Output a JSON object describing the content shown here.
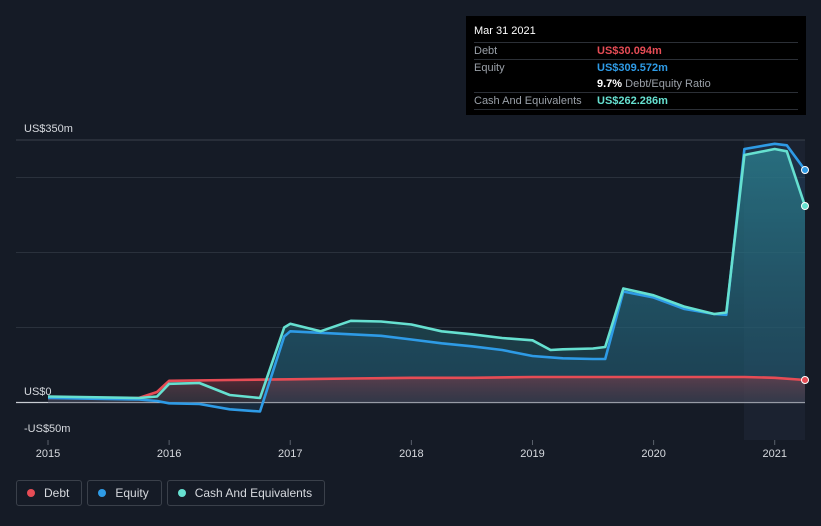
{
  "tooltip": {
    "date": "Mar 31 2021",
    "rows": [
      {
        "label": "Debt",
        "value": "US$30.094m",
        "color": "#e64c55"
      },
      {
        "label": "Equity",
        "value": "US$309.572m",
        "color": "#2e9be6"
      },
      {
        "label": "Cash And Equivalents",
        "value": "US$262.286m",
        "color": "#66e0d0"
      }
    ],
    "ratio_value": "9.7%",
    "ratio_label": "Debt/Equity Ratio"
  },
  "legend": [
    {
      "label": "Debt",
      "color": "#e64c55"
    },
    {
      "label": "Equity",
      "color": "#2e9be6"
    },
    {
      "label": "Cash And Equivalents",
      "color": "#66e0d0"
    }
  ],
  "chart_data": {
    "type": "area",
    "y_tick_labels": [
      "US$350m",
      "US$0",
      "-US$50m"
    ],
    "x_tick_labels": [
      "2015",
      "2016",
      "2017",
      "2018",
      "2019",
      "2020",
      "2021"
    ],
    "ylim": [
      -50,
      350
    ],
    "xlim": [
      2015.0,
      2021.25
    ],
    "grid": true,
    "legend_position": "bottom-left",
    "series": [
      {
        "name": "Debt",
        "color": "#e64c55",
        "x": [
          2015.0,
          2015.75,
          2015.9,
          2016.0,
          2016.5,
          2017.0,
          2017.5,
          2018.0,
          2018.5,
          2019.0,
          2019.5,
          2020.0,
          2020.5,
          2020.75,
          2021.0,
          2021.25
        ],
        "y": [
          6,
          6,
          14,
          29,
          30,
          31,
          32,
          33,
          33,
          34,
          34,
          34,
          34,
          34,
          33,
          30
        ]
      },
      {
        "name": "Equity",
        "color": "#2e9be6",
        "x": [
          2015.0,
          2015.75,
          2015.9,
          2016.0,
          2016.25,
          2016.5,
          2016.75,
          2016.95,
          2017.0,
          2017.25,
          2017.5,
          2017.75,
          2018.0,
          2018.25,
          2018.5,
          2018.75,
          2019.0,
          2019.25,
          2019.5,
          2019.6,
          2019.75,
          2020.0,
          2020.25,
          2020.5,
          2020.6,
          2020.75,
          2021.0,
          2021.1,
          2021.25
        ],
        "y": [
          6,
          4,
          2,
          -1,
          -2,
          -9,
          -12,
          88,
          95,
          93,
          91,
          89,
          84,
          79,
          75,
          70,
          62,
          59,
          58,
          58,
          148,
          140,
          125,
          118,
          117,
          338,
          345,
          343,
          310
        ]
      },
      {
        "name": "Cash And Equivalents",
        "color": "#66e0d0",
        "x": [
          2015.0,
          2015.75,
          2015.9,
          2016.0,
          2016.25,
          2016.5,
          2016.75,
          2016.95,
          2017.0,
          2017.25,
          2017.5,
          2017.75,
          2018.0,
          2018.25,
          2018.5,
          2018.75,
          2019.0,
          2019.15,
          2019.25,
          2019.5,
          2019.6,
          2019.75,
          2020.0,
          2020.25,
          2020.5,
          2020.6,
          2020.75,
          2021.0,
          2021.1,
          2021.25
        ],
        "y": [
          8,
          6,
          8,
          25,
          26,
          10,
          6,
          100,
          105,
          95,
          109,
          108,
          104,
          95,
          91,
          86,
          83,
          70,
          71,
          72,
          74,
          152,
          143,
          128,
          118,
          120,
          330,
          338,
          335,
          262
        ]
      }
    ]
  }
}
